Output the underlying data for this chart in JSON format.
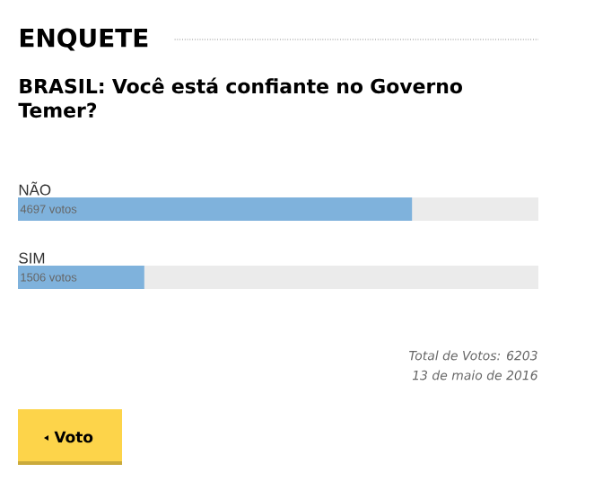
{
  "chart_data": {
    "type": "bar",
    "orientation": "horizontal",
    "title": "ENQUETE",
    "subtitle": "BRASIL: Você está confiante no Governo Temer?",
    "categories": [
      "NÃO",
      "SIM"
    ],
    "values": [
      4697,
      1506
    ],
    "value_labels": [
      "4697 votos",
      "1506 votos"
    ],
    "color": "#7fb2dc",
    "xlim": [
      0,
      6203
    ],
    "annotations": [
      "Total de Votos: 6203",
      "13 de maio de 2016",
      "Voto"
    ]
  }
}
